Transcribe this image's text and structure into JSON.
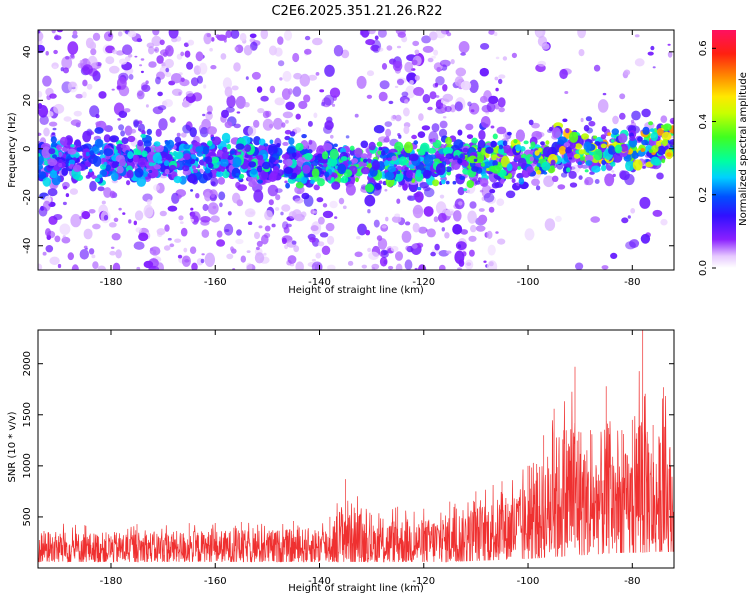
{
  "title": "C2E6.2025.351.21.26.R22",
  "chart_data": [
    {
      "type": "heatmap",
      "name": "spectrogram",
      "xlabel": "Height of straight line (km)",
      "ylabel": "Frequency (Hz)",
      "xlim": [
        -194,
        -72
      ],
      "ylim": [
        -50,
        49
      ],
      "xticks": [
        -180,
        -160,
        -140,
        -120,
        -100,
        -80
      ],
      "yticks": [
        -40,
        -20,
        0,
        20,
        40
      ],
      "description_of_ridge": {
        "centre_frequency_hz_at_x": [
          [
            -194,
            -4
          ],
          [
            -160,
            -4
          ],
          [
            -135,
            -7
          ],
          [
            -110,
            -5
          ],
          [
            -100,
            -3
          ],
          [
            -85,
            0
          ],
          [
            -72,
            2
          ]
        ],
        "peak_amplitude_at_x": [
          [
            -194,
            0.2
          ],
          [
            -160,
            0.22
          ],
          [
            -135,
            0.28
          ],
          [
            -110,
            0.32
          ],
          [
            -100,
            0.38
          ],
          [
            -85,
            0.42
          ],
          [
            -72,
            0.45
          ]
        ]
      },
      "colorbar": {
        "label": "Normalized spectral amplitude",
        "range": [
          0.0,
          0.65
        ],
        "ticks": [
          0.0,
          0.2,
          0.4,
          0.6
        ]
      }
    },
    {
      "type": "line",
      "name": "snr-trace",
      "xlabel": "Height of straight line (km)",
      "ylabel": "SNR (10 * v/v)",
      "xlim": [
        -194,
        -72
      ],
      "ylim": [
        0,
        2330
      ],
      "xticks": [
        -180,
        -160,
        -140,
        -120,
        -100,
        -80
      ],
      "yticks": [
        500,
        1000,
        1500,
        2000
      ],
      "series": [
        {
          "name": "SNR",
          "color": "#ef3030",
          "envelope_x": [
            -194,
            -185,
            -175,
            -165,
            -155,
            -145,
            -138,
            -135,
            -130,
            -125,
            -120,
            -115,
            -110,
            -105,
            -100,
            -97,
            -95,
            -91,
            -88,
            -85,
            -82,
            -80,
            -78,
            -76,
            -74,
            -72
          ],
          "envelope_low": [
            60,
            60,
            60,
            60,
            60,
            60,
            60,
            60,
            60,
            60,
            60,
            60,
            70,
            80,
            90,
            100,
            110,
            120,
            130,
            140,
            150,
            150,
            150,
            160,
            160,
            160
          ],
          "envelope_high": [
            450,
            420,
            430,
            440,
            450,
            460,
            500,
            870,
            520,
            600,
            580,
            650,
            750,
            850,
            1000,
            1300,
            1560,
            1970,
            1350,
            1780,
            1350,
            1450,
            2330,
            1400,
            1770,
            1350
          ]
        }
      ]
    }
  ]
}
